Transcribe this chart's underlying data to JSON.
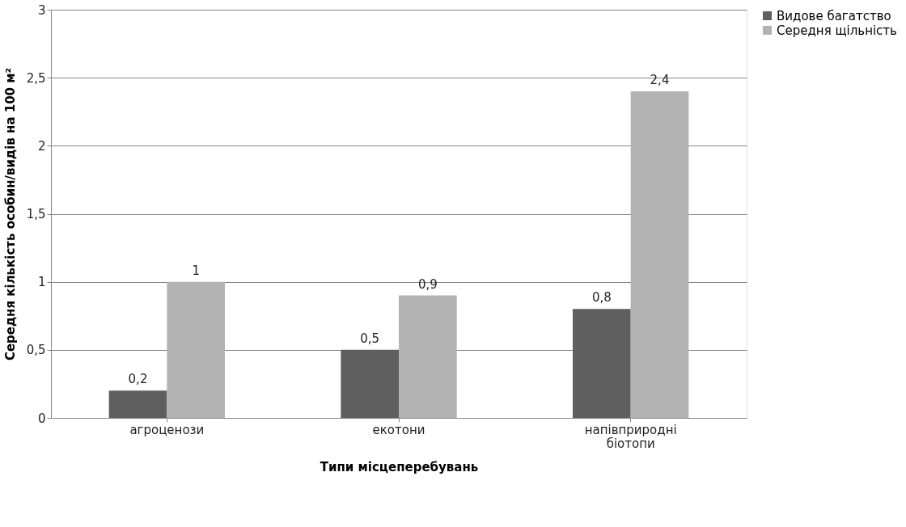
{
  "chart_data": {
    "type": "bar",
    "xlabel": "Типи місцеперебувань",
    "ylabel": "Середня кількість особин/видів на 100 м²",
    "categories": [
      "агроценози",
      "екотони",
      "напівприродні біотопи"
    ],
    "series": [
      {
        "name": "Видове багатство",
        "color": "#5f5f5f",
        "values": [
          0.2,
          0.5,
          0.8
        ],
        "value_labels": [
          "0,2",
          "0,5",
          "0,8"
        ]
      },
      {
        "name": "Середня щільність",
        "color": "#b2b2b2",
        "values": [
          1,
          0.9,
          2.4
        ],
        "value_labels": [
          "1",
          "0,9",
          "2,4"
        ]
      }
    ],
    "ylim": [
      0,
      3
    ],
    "yticks": [
      0,
      {
        "value": 0.5,
        "label": "0,5"
      },
      1,
      {
        "value": 1.5,
        "label": "1,5"
      },
      2,
      {
        "value": 2.5,
        "label": "2,5"
      },
      3
    ],
    "grid": "y",
    "legend": "right"
  }
}
